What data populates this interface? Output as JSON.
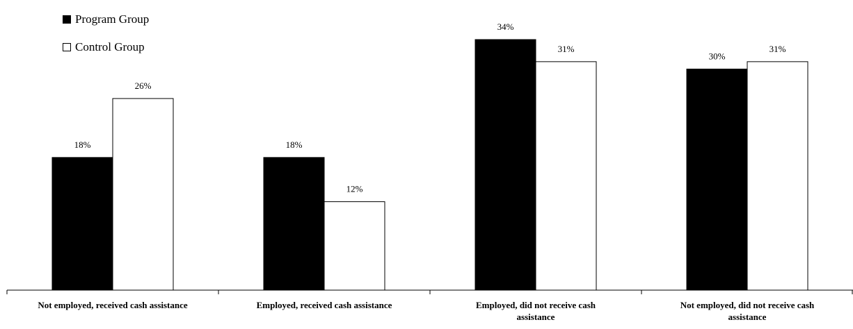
{
  "chart_data": {
    "type": "bar",
    "categories": [
      [
        "Not employed, received cash assistance"
      ],
      [
        "Employed, received cash assistance"
      ],
      [
        "Employed, did not receive cash",
        "assistance"
      ],
      [
        "Not employed, did not receive cash",
        "assistance"
      ]
    ],
    "series": [
      {
        "name": "Program Group",
        "values": [
          18,
          18,
          34,
          30
        ],
        "color": "#000000"
      },
      {
        "name": "Control Group",
        "values": [
          26,
          12,
          31,
          31
        ],
        "color": "#ffffff"
      }
    ],
    "value_suffix": "%",
    "ylim": [
      0,
      34
    ],
    "grid": false,
    "legend_position": "top-left"
  }
}
